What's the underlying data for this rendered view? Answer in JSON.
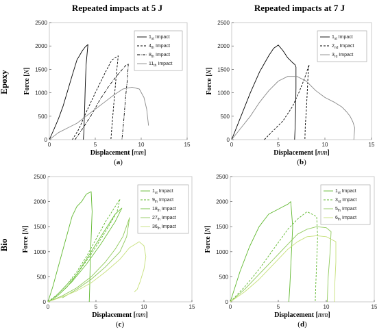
{
  "column_titles": [
    "Repeated impacts at 5 J",
    "Repeated impacts at 7 J"
  ],
  "row_titles": [
    "Epoxy",
    "Bio"
  ],
  "chart_data": [
    {
      "id": "a",
      "type": "line",
      "caption": "a",
      "xlabel": "Displacement",
      "xunit": "mm",
      "ylabel": "Force",
      "yunit": "N",
      "xlim": [
        0,
        15
      ],
      "ylim": [
        0,
        2500
      ],
      "xticks": [
        0,
        5,
        10,
        15
      ],
      "yticks": [
        0,
        500,
        1000,
        1500,
        2000,
        2500
      ],
      "grid": false,
      "legend_position": "top-right",
      "series": [
        {
          "name": "1st Impact",
          "name_main": "1",
          "name_sub": "st",
          "name_tail": " Impact",
          "dash": "solid",
          "color": "#000000",
          "x": [
            0,
            0.5,
            1.0,
            1.5,
            2.0,
            2.5,
            3.0,
            3.3,
            3.6,
            3.9,
            4.2,
            4.0,
            3.9,
            3.85,
            3.8,
            3.75,
            3.7
          ],
          "y": [
            0,
            220,
            450,
            720,
            1050,
            1380,
            1700,
            1800,
            1900,
            1980,
            2030,
            1600,
            1100,
            700,
            400,
            150,
            0
          ]
        },
        {
          "name": "4th Impact",
          "name_main": "4",
          "name_sub": "th",
          "name_tail": " Impact",
          "dash": "dash",
          "color": "#000000",
          "x": [
            2.5,
            3.2,
            4.0,
            5.0,
            6.0,
            6.8,
            7.5,
            7.3,
            7.1,
            6.95,
            6.8,
            6.7
          ],
          "y": [
            0,
            220,
            580,
            1000,
            1400,
            1700,
            1790,
            1400,
            950,
            600,
            250,
            0
          ]
        },
        {
          "name": "8th Impact",
          "name_main": "8",
          "name_sub": "th",
          "name_tail": " Impact",
          "dash": "dashdot",
          "color": "#000000",
          "x": [
            2.8,
            3.5,
            4.5,
            5.5,
            6.5,
            7.5,
            8.3,
            8.6,
            8.5,
            8.3,
            8.1,
            7.9
          ],
          "y": [
            0,
            200,
            500,
            850,
            1150,
            1400,
            1580,
            1620,
            1300,
            900,
            400,
            0
          ]
        },
        {
          "name": "11th Impact",
          "name_main": "11",
          "name_sub": "th",
          "name_tail": " Impact",
          "dash": "solid",
          "color": "#888888",
          "x": [
            0,
            1.0,
            2.0,
            3.0,
            4.0,
            5.0,
            6.0,
            7.0,
            8.0,
            9.0,
            9.8,
            10.3,
            10.6,
            10.8
          ],
          "y": [
            0,
            150,
            250,
            350,
            500,
            650,
            800,
            950,
            1080,
            1120,
            1080,
            900,
            650,
            300
          ]
        }
      ]
    },
    {
      "id": "b",
      "type": "line",
      "caption": "b",
      "xlabel": "Displacement",
      "xunit": "mm",
      "ylabel": "Force",
      "yunit": "N",
      "xlim": [
        0,
        15
      ],
      "ylim": [
        0,
        2500
      ],
      "xticks": [
        0,
        5,
        10,
        15
      ],
      "yticks": [
        0,
        500,
        1000,
        1500,
        2000,
        2500
      ],
      "grid": false,
      "legend_position": "top-right",
      "series": [
        {
          "name": "1st Impact",
          "name_main": "1",
          "name_sub": "st",
          "name_tail": " Impact",
          "dash": "solid",
          "color": "#000000",
          "x": [
            0,
            1.0,
            2.0,
            3.0,
            4.0,
            4.5,
            5.0,
            5.5,
            6.0,
            6.5,
            6.8,
            6.9,
            6.9,
            6.85,
            6.8,
            6.75
          ],
          "y": [
            0,
            500,
            1000,
            1450,
            1800,
            1950,
            2020,
            1900,
            1750,
            1650,
            1600,
            1550,
            1100,
            600,
            250,
            0
          ]
        },
        {
          "name": "2nd Impact",
          "name_main": "2",
          "name_sub": "nd",
          "name_tail": " Impact",
          "dash": "dash",
          "color": "#000000",
          "x": [
            3.5,
            4.5,
            5.5,
            6.5,
            7.2,
            7.8,
            8.3,
            8.2,
            8.1,
            8.0,
            7.9,
            7.85
          ],
          "y": [
            0,
            200,
            400,
            700,
            1000,
            1300,
            1600,
            1400,
            1000,
            600,
            300,
            0
          ]
        },
        {
          "name": "3rd Impact",
          "name_main": "3",
          "name_sub": "rd",
          "name_tail": " Impact",
          "dash": "solid",
          "color": "#888888",
          "x": [
            0,
            1.0,
            2.0,
            3.0,
            4.0,
            5.0,
            6.0,
            7.0,
            8.0,
            9.0,
            10.0,
            11.0,
            11.8,
            12.3,
            12.7,
            13.0,
            13.2,
            13.1
          ],
          "y": [
            0,
            250,
            500,
            800,
            1050,
            1250,
            1350,
            1350,
            1250,
            1050,
            900,
            800,
            700,
            600,
            500,
            380,
            250,
            0
          ]
        }
      ]
    },
    {
      "id": "c",
      "type": "line",
      "caption": "c",
      "xlabel": "Displacement",
      "xunit": "mm",
      "ylabel": "Force",
      "yunit": "N",
      "xlim": [
        0,
        15
      ],
      "ylim": [
        0,
        2500
      ],
      "xticks": [
        0,
        5,
        10,
        15
      ],
      "yticks": [
        0,
        500,
        1000,
        1500,
        2000,
        2500
      ],
      "grid": false,
      "legend_position": "top-right",
      "series": [
        {
          "name": "1st Impact",
          "name_main": "1",
          "name_sub": "st",
          "name_tail": " Impact",
          "dash": "solid",
          "color": "#5fb82e",
          "x": [
            0,
            0.5,
            1.0,
            1.5,
            2.0,
            2.5,
            3.0,
            3.5,
            4.0,
            4.5,
            4.6,
            4.5,
            4.4,
            4.35,
            4.3
          ],
          "y": [
            0,
            300,
            650,
            1000,
            1350,
            1700,
            1900,
            2000,
            2150,
            2200,
            1800,
            1300,
            800,
            300,
            0
          ]
        },
        {
          "name": "9th Impact",
          "name_main": "9",
          "name_sub": "th",
          "name_tail": " Impact",
          "dash": "dash",
          "color": "#5fb82e",
          "x": [
            0,
            1.0,
            2.0,
            3.0,
            4.0,
            5.0,
            6.0,
            7.0,
            7.5,
            7.2,
            6.0,
            4.5,
            3.0,
            1.5,
            0.5
          ],
          "y": [
            0,
            150,
            350,
            600,
            900,
            1250,
            1600,
            1900,
            2050,
            1800,
            1400,
            950,
            550,
            250,
            50
          ]
        },
        {
          "name": "18th Impact",
          "name_main": "18",
          "name_sub": "th",
          "name_tail": " Impact",
          "dash": "solid",
          "color": "#6cc03a",
          "x": [
            0,
            1.0,
            2.0,
            3.0,
            4.0,
            5.0,
            6.0,
            7.0,
            7.7,
            7.0,
            5.5,
            4.0,
            2.5,
            1.0
          ],
          "y": [
            0,
            120,
            300,
            550,
            850,
            1150,
            1450,
            1750,
            1870,
            1600,
            1150,
            750,
            400,
            120
          ]
        },
        {
          "name": "27th Impact",
          "name_main": "27",
          "name_sub": "th",
          "name_tail": " Impact",
          "dash": "solid",
          "color": "#8fc95a",
          "x": [
            0,
            1.5,
            3.0,
            4.5,
            6.0,
            7.0,
            7.8,
            8.5,
            8.2,
            7.5,
            6.0,
            4.5,
            3.0,
            1.5
          ],
          "y": [
            0,
            120,
            280,
            500,
            800,
            1050,
            1300,
            1680,
            1300,
            1000,
            700,
            450,
            250,
            80
          ]
        },
        {
          "name": "36th Impact",
          "name_main": "36",
          "name_sub": "th",
          "name_tail": " Impact",
          "dash": "solid",
          "color": "#c6e07a",
          "x": [
            0,
            1.5,
            3.0,
            4.5,
            6.0,
            7.5,
            8.5,
            9.5,
            10.0,
            10.2,
            10.0,
            9.6,
            9.3,
            9.0
          ],
          "y": [
            0,
            100,
            220,
            380,
            600,
            850,
            1080,
            1200,
            1120,
            900,
            650,
            400,
            250,
            200
          ]
        }
      ]
    },
    {
      "id": "d",
      "type": "line",
      "caption": "d",
      "xlabel": "Displacement",
      "xunit": "mm",
      "ylabel": "Force",
      "yunit": "N",
      "xlim": [
        0,
        15
      ],
      "ylim": [
        0,
        2500
      ],
      "xticks": [
        0,
        5,
        10,
        15
      ],
      "yticks": [
        0,
        500,
        1000,
        1500,
        2000,
        2500
      ],
      "grid": false,
      "legend_position": "top-right",
      "series": [
        {
          "name": "1st Impact",
          "name_main": "1",
          "name_sub": "st",
          "name_tail": " Impact",
          "dash": "solid",
          "color": "#5fb82e",
          "x": [
            0,
            1.0,
            2.0,
            3.0,
            4.0,
            5.0,
            5.5,
            6.0,
            6.3,
            6.5,
            6.4,
            6.3,
            6.2,
            6.1
          ],
          "y": [
            0,
            600,
            1100,
            1500,
            1750,
            1850,
            1900,
            1950,
            2000,
            1500,
            1100,
            700,
            300,
            0
          ]
        },
        {
          "name": "3rd Impact",
          "name_main": "3",
          "name_sub": "rd",
          "name_tail": " Impact",
          "dash": "dash",
          "color": "#5fb82e",
          "x": [
            0,
            1.5,
            3.0,
            4.5,
            6.0,
            7.0,
            8.0,
            8.5,
            9.0,
            9.1,
            9.0,
            8.9,
            8.85
          ],
          "y": [
            0,
            300,
            650,
            1050,
            1450,
            1650,
            1800,
            1750,
            1700,
            1300,
            800,
            300,
            0
          ]
        },
        {
          "name": "5th Impact",
          "name_main": "5",
          "name_sub": "th",
          "name_tail": " Impact",
          "dash": "solid",
          "color": "#8fc95a",
          "x": [
            0,
            1.5,
            3.0,
            4.5,
            6.0,
            7.0,
            8.0,
            9.0,
            10.0,
            10.5,
            10.4,
            10.2,
            10.1
          ],
          "y": [
            0,
            250,
            550,
            850,
            1150,
            1350,
            1450,
            1500,
            1480,
            1400,
            1000,
            500,
            0
          ]
        },
        {
          "name": "6th Impact",
          "name_main": "6",
          "name_sub": "th",
          "name_tail": " Impact",
          "dash": "solid",
          "color": "#c6e07a",
          "x": [
            0,
            1.5,
            3.0,
            4.5,
            6.0,
            7.0,
            8.0,
            9.0,
            10.0,
            10.5,
            11.0,
            11.0,
            10.9,
            10.85
          ],
          "y": [
            0,
            200,
            450,
            750,
            1050,
            1200,
            1300,
            1320,
            1300,
            1250,
            1200,
            800,
            400,
            0
          ]
        }
      ]
    }
  ]
}
